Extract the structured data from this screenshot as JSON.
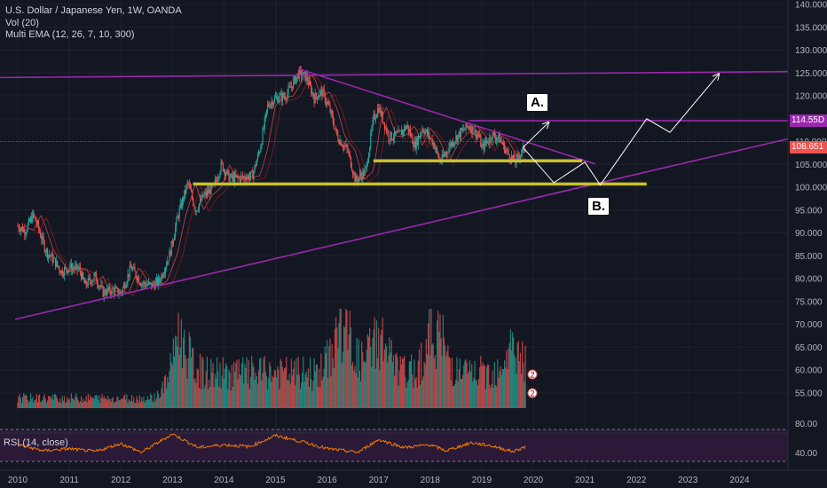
{
  "header": {
    "symbol_line": "U.S. Dollar / Japanese Yen, 1W, OANDA",
    "volume_line": "Vol (20)",
    "ema_line": "Multi EMA (12, 26, 7, 10, 300)"
  },
  "rsi": {
    "title": "RSI (14, close)",
    "upper_level": 80,
    "lower_level": 40,
    "tick_labels": [
      "80.00",
      "40.00"
    ]
  },
  "annotations": {
    "a_label": "A.",
    "b_label": "B."
  },
  "price_tags": {
    "resistance": "114.55D",
    "current": "108.651",
    "resistance_color": "#9c27b0",
    "current_color": "#ef5350"
  },
  "volume_markers": [
    "2",
    "2"
  ],
  "colors": {
    "background": "#131722",
    "up_candle": "#26a69a",
    "down_candle": "#ef5350",
    "trendline": "#9c27b0",
    "support_zone": "#c8c030",
    "rsi_line": "#f57c00",
    "rsi_band": "#2a1a38"
  },
  "chart_data": {
    "type": "candlestick",
    "title": "U.S. Dollar / Japanese Yen, 1W, OANDA",
    "x_labels": [
      "2010",
      "2011",
      "2012",
      "2013",
      "2014",
      "2015",
      "2016",
      "2017",
      "2018",
      "2019",
      "2020",
      "2021",
      "2022",
      "2023",
      "2024"
    ],
    "y_labels": [
      "140.000",
      "135.000",
      "130.000",
      "125.000",
      "120.000",
      "115.000",
      "110.000",
      "105.000",
      "100.000",
      "95.000",
      "90.000",
      "85.000",
      "80.000",
      "75.000",
      "70.000",
      "65.000",
      "60.000",
      "55.000"
    ],
    "ylim": [
      54,
      140
    ],
    "xlim": [
      2010,
      2025
    ],
    "price_path": [
      [
        2010.0,
        91.5
      ],
      [
        2010.15,
        90.5
      ],
      [
        2010.3,
        94.0
      ],
      [
        2010.4,
        91.0
      ],
      [
        2010.55,
        86.0
      ],
      [
        2010.7,
        84.0
      ],
      [
        2010.85,
        81.5
      ],
      [
        2011.0,
        82.5
      ],
      [
        2011.2,
        82.0
      ],
      [
        2011.3,
        78.5
      ],
      [
        2011.5,
        80.5
      ],
      [
        2011.65,
        77.0
      ],
      [
        2011.85,
        77.5
      ],
      [
        2012.0,
        76.8
      ],
      [
        2012.2,
        82.5
      ],
      [
        2012.4,
        79.0
      ],
      [
        2012.6,
        78.5
      ],
      [
        2012.75,
        79.5
      ],
      [
        2012.95,
        85.5
      ],
      [
        2013.1,
        93.5
      ],
      [
        2013.3,
        101.0
      ],
      [
        2013.45,
        95.0
      ],
      [
        2013.6,
        98.0
      ],
      [
        2013.8,
        100.0
      ],
      [
        2013.95,
        105.0
      ],
      [
        2014.1,
        102.0
      ],
      [
        2014.3,
        102.0
      ],
      [
        2014.55,
        102.5
      ],
      [
        2014.7,
        108.5
      ],
      [
        2014.85,
        118.0
      ],
      [
        2015.0,
        119.5
      ],
      [
        2015.2,
        120.0
      ],
      [
        2015.45,
        125.0
      ],
      [
        2015.6,
        124.0
      ],
      [
        2015.75,
        119.5
      ],
      [
        2015.9,
        121.0
      ],
      [
        2016.05,
        117.0
      ],
      [
        2016.2,
        111.0
      ],
      [
        2016.4,
        108.0
      ],
      [
        2016.55,
        101.5
      ],
      [
        2016.75,
        103.5
      ],
      [
        2016.9,
        115.0
      ],
      [
        2017.0,
        117.5
      ],
      [
        2017.2,
        111.0
      ],
      [
        2017.4,
        111.5
      ],
      [
        2017.55,
        113.5
      ],
      [
        2017.7,
        109.0
      ],
      [
        2017.85,
        113.0
      ],
      [
        2018.05,
        110.0
      ],
      [
        2018.2,
        105.5
      ],
      [
        2018.4,
        109.5
      ],
      [
        2018.55,
        111.5
      ],
      [
        2018.75,
        113.5
      ],
      [
        2018.95,
        111.0
      ],
      [
        2019.0,
        108.5
      ],
      [
        2019.2,
        111.5
      ],
      [
        2019.35,
        110.5
      ],
      [
        2019.5,
        107.5
      ],
      [
        2019.65,
        105.5
      ],
      [
        2019.75,
        107.5
      ],
      [
        2019.85,
        108.65
      ]
    ],
    "lines": {
      "upper_trendline": [
        [
          2015.45,
          125.9
        ],
        [
          2021.2,
          105.1
        ]
      ],
      "lower_trendline": [
        [
          2009.95,
          71.1
        ],
        [
          2024.95,
          110.6
        ]
      ],
      "horizontal_125": [
        [
          2009.6,
          124.0
        ],
        [
          2025.0,
          125.3
        ]
      ],
      "horizontal_114": [
        [
          2018.75,
          114.55
        ],
        [
          2025.0,
          114.55
        ]
      ],
      "support_zone_upper": [
        [
          2016.9,
          105.8
        ],
        [
          2020.95,
          105.8
        ]
      ],
      "support_zone_lower": [
        [
          2013.4,
          100.7
        ],
        [
          2022.2,
          100.7
        ]
      ]
    },
    "projections": {
      "a_path": [
        [
          2019.8,
          108.7
        ],
        [
          2020.3,
          114.2
        ]
      ],
      "b_path": [
        [
          2019.8,
          108.7
        ],
        [
          2020.4,
          101.0
        ],
        [
          2021.0,
          105.5
        ],
        [
          2021.3,
          100.5
        ],
        [
          2022.2,
          115.0
        ],
        [
          2022.65,
          112.0
        ],
        [
          2023.6,
          124.8
        ]
      ]
    },
    "volume_peaks": [
      [
        2013.1,
        0.75
      ],
      [
        2016.3,
        0.95
      ],
      [
        2017.0,
        0.7
      ],
      [
        2018.1,
        0.85
      ],
      [
        2019.6,
        0.5
      ]
    ],
    "rsi_path": [
      [
        2010.0,
        55
      ],
      [
        2010.5,
        40
      ],
      [
        2011.0,
        45
      ],
      [
        2011.5,
        38
      ],
      [
        2012.0,
        58
      ],
      [
        2012.4,
        36
      ],
      [
        2013.0,
        82
      ],
      [
        2013.5,
        48
      ],
      [
        2014.0,
        55
      ],
      [
        2014.5,
        50
      ],
      [
        2015.0,
        78
      ],
      [
        2015.6,
        60
      ],
      [
        2016.0,
        45
      ],
      [
        2016.6,
        36
      ],
      [
        2017.0,
        68
      ],
      [
        2017.5,
        48
      ],
      [
        2018.0,
        55
      ],
      [
        2018.3,
        40
      ],
      [
        2018.8,
        60
      ],
      [
        2019.2,
        52
      ],
      [
        2019.6,
        38
      ],
      [
        2019.85,
        50
      ]
    ]
  }
}
